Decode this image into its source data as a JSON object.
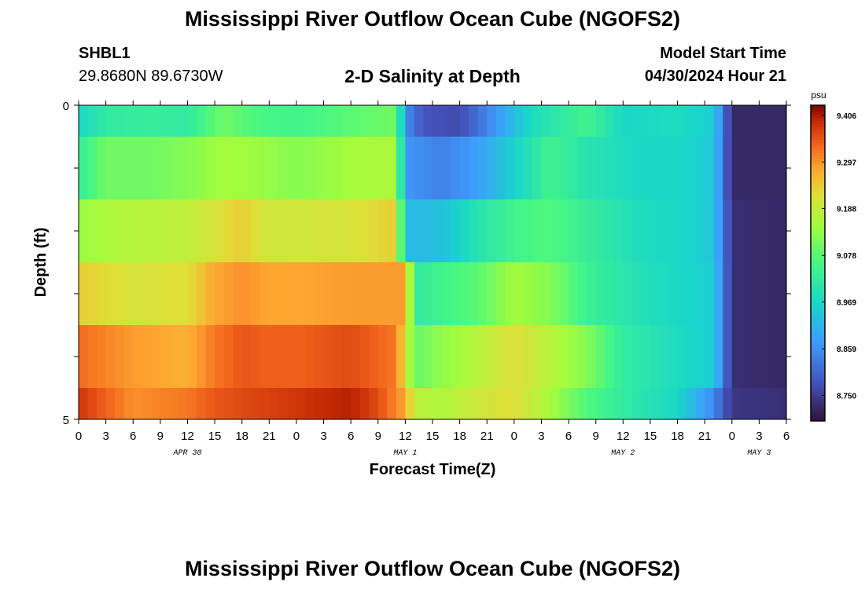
{
  "title": "Mississippi River Outflow Ocean Cube (NGOFS2)",
  "station": {
    "id": "SHBL1",
    "location": "29.8680N  89.6730W"
  },
  "plot_title": "2-D Salinity at Depth",
  "model_start": {
    "label": "Model Start Time",
    "value": "04/30/2024 Hour 21"
  },
  "footer_title": "Mississippi River Outflow Ocean Cube (NGOFS2)",
  "chart_data": {
    "type": "heatmap",
    "xlabel": "Forecast Time(Z)",
    "ylabel": "Depth (ft)",
    "x_tick_labels": [
      "0",
      "3",
      "6",
      "9",
      "12",
      "15",
      "18",
      "21",
      "0",
      "3",
      "6",
      "9",
      "12",
      "15",
      "18",
      "21",
      "0",
      "3",
      "6",
      "9",
      "12",
      "15",
      "18",
      "21",
      "0",
      "3",
      "6"
    ],
    "x_range_hours": [
      0,
      78
    ],
    "day_labels": [
      {
        "label": "APR 30",
        "hour": 12
      },
      {
        "label": "MAY 1",
        "hour": 36
      },
      {
        "label": "MAY 2",
        "hour": 60
      },
      {
        "label": "MAY 3",
        "hour": 75
      }
    ],
    "y_tick_labels": [
      "0",
      "5"
    ],
    "ylim": [
      0,
      5
    ],
    "colorbar": {
      "unit": "psu",
      "ticks": [
        "9.406",
        "9.297",
        "9.188",
        "9.078",
        "8.969",
        "8.859",
        "8.750"
      ],
      "min": 8.69,
      "max": 9.43
    },
    "layers": [
      {
        "depth_top": 0.0,
        "depth_bottom": 0.5,
        "hours": [
          0,
          3,
          8,
          12,
          16,
          20,
          24,
          30,
          35,
          36,
          38,
          42,
          46,
          50,
          56,
          60,
          66,
          70,
          72,
          78
        ],
        "values": [
          8.97,
          9.02,
          9.03,
          9.02,
          9.1,
          9.06,
          9.05,
          9.08,
          9.1,
          8.86,
          8.78,
          8.77,
          8.87,
          8.98,
          9.05,
          8.97,
          8.98,
          8.95,
          8.72,
          8.72
        ]
      },
      {
        "depth_top": 0.5,
        "depth_bottom": 1.5,
        "hours": [
          0,
          3,
          8,
          12,
          16,
          20,
          24,
          30,
          35,
          36,
          40,
          44,
          48,
          52,
          56,
          62,
          66,
          70,
          72,
          78
        ],
        "values": [
          9.03,
          9.1,
          9.1,
          9.12,
          9.15,
          9.14,
          9.12,
          9.15,
          9.16,
          8.87,
          8.84,
          8.88,
          8.96,
          9.05,
          9.0,
          8.97,
          8.97,
          8.94,
          8.72,
          8.72
        ]
      },
      {
        "depth_top": 1.5,
        "depth_bottom": 2.5,
        "hours": [
          0,
          6,
          12,
          15,
          18,
          21,
          24,
          30,
          35,
          36,
          40,
          44,
          48,
          52,
          56,
          62,
          66,
          70,
          72,
          78
        ],
        "values": [
          9.14,
          9.17,
          9.18,
          9.21,
          9.24,
          9.2,
          9.2,
          9.21,
          9.24,
          8.92,
          8.93,
          9.0,
          9.05,
          9.07,
          9.03,
          8.98,
          8.97,
          8.94,
          8.73,
          8.72
        ]
      },
      {
        "depth_top": 2.5,
        "depth_bottom": 3.5,
        "hours": [
          0,
          6,
          12,
          15,
          18,
          21,
          24,
          30,
          36,
          37,
          40,
          44,
          48,
          52,
          56,
          62,
          66,
          70,
          72,
          78
        ],
        "values": [
          9.24,
          9.21,
          9.22,
          9.28,
          9.3,
          9.28,
          9.28,
          9.29,
          9.29,
          9.02,
          9.05,
          9.08,
          9.15,
          9.12,
          9.04,
          8.99,
          8.97,
          8.95,
          8.73,
          8.72
        ]
      },
      {
        "depth_top": 3.5,
        "depth_bottom": 4.5,
        "hours": [
          0,
          6,
          12,
          15,
          18,
          21,
          24,
          30,
          35,
          37,
          40,
          44,
          48,
          52,
          56,
          60,
          66,
          70,
          72,
          78
        ],
        "values": [
          9.33,
          9.29,
          9.27,
          9.32,
          9.35,
          9.34,
          9.34,
          9.36,
          9.32,
          9.09,
          9.13,
          9.17,
          9.22,
          9.17,
          9.12,
          9.02,
          8.98,
          8.95,
          8.73,
          8.72
        ]
      },
      {
        "depth_top": 4.5,
        "depth_bottom": 5.0,
        "hours": [
          0,
          6,
          12,
          15,
          18,
          24,
          30,
          33,
          36,
          37,
          40,
          44,
          48,
          52,
          56,
          60,
          66,
          70,
          72,
          78
        ],
        "values": [
          9.38,
          9.3,
          9.32,
          9.35,
          9.36,
          9.38,
          9.4,
          9.36,
          9.28,
          9.18,
          9.16,
          9.2,
          9.22,
          9.15,
          9.07,
          9.02,
          8.97,
          8.85,
          8.74,
          8.73
        ]
      }
    ]
  }
}
